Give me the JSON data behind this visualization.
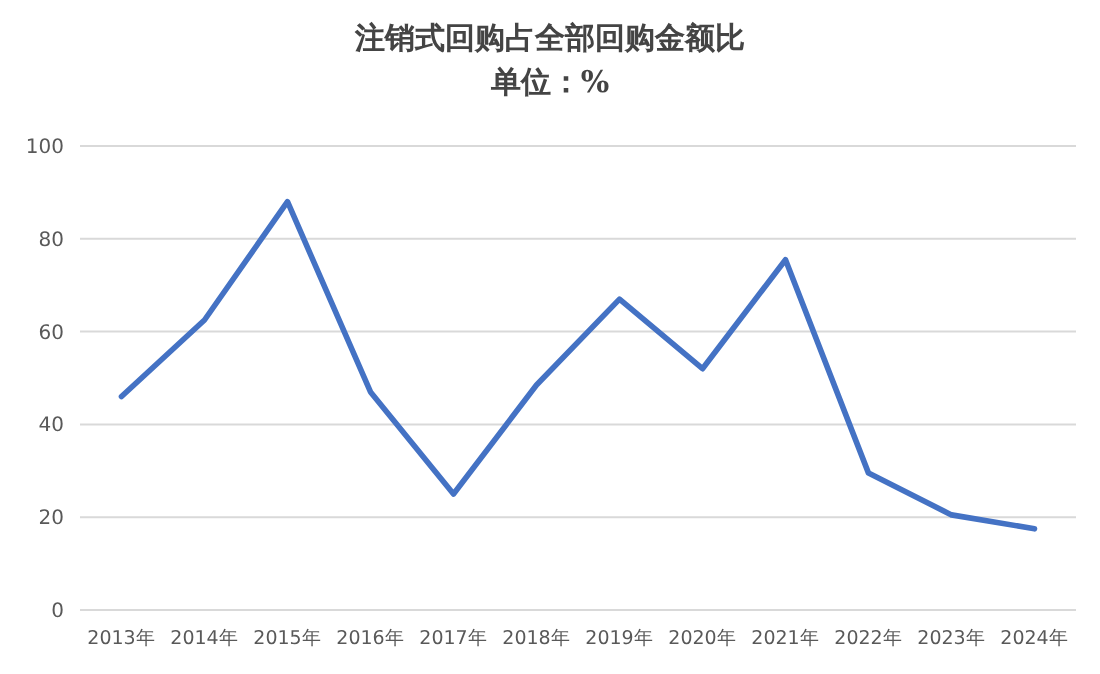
{
  "chart_data": {
    "type": "line",
    "title": "注销式回购占全部回购金额比",
    "subtitle": "单位：%",
    "categories": [
      "2013年",
      "2014年",
      "2015年",
      "2016年",
      "2017年",
      "2018年",
      "2019年",
      "2020年",
      "2021年",
      "2022年",
      "2023年",
      "2024年"
    ],
    "series": [
      {
        "color": "#4472c4",
        "values": [
          46,
          62.5,
          88,
          47,
          25,
          48.5,
          67,
          52,
          75.5,
          29.5,
          20.5,
          17.5
        ]
      }
    ],
    "ylim": [
      0,
      100
    ],
    "yticks": [
      0,
      20,
      40,
      60,
      80,
      100
    ],
    "grid": "y",
    "marker": "none",
    "line_style": "solid"
  }
}
